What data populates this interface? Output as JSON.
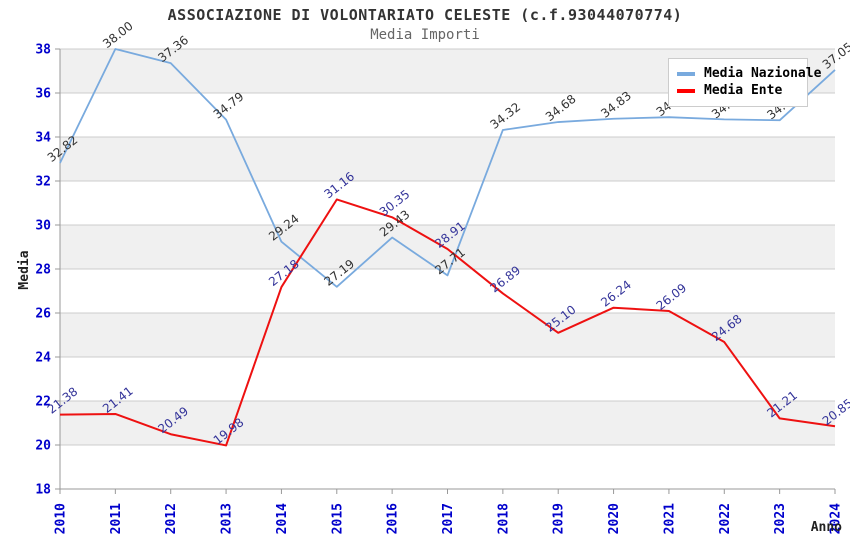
{
  "header": {
    "title": "ASSOCIAZIONE DI VOLONTARIATO CELESTE (c.f.93044070774)",
    "subtitle": "Media Importi"
  },
  "axes": {
    "y_title": "Media",
    "x_title": "Anno",
    "tick_color": "#0000cc"
  },
  "chart_data": {
    "type": "line",
    "title": "ASSOCIAZIONE DI VOLONTARIATO CELESTE (c.f.93044070774)",
    "subtitle": "Media Importi",
    "xlabel": "Anno",
    "ylabel": "Media",
    "x": [
      "2010",
      "2011",
      "2012",
      "2013",
      "2014",
      "2015",
      "2016",
      "2017",
      "2018",
      "2019",
      "2020",
      "2021",
      "2022",
      "2023",
      "2024"
    ],
    "series": [
      {
        "name": "Media Nazionale",
        "color": "#79aade",
        "label_color": "#333333",
        "values": [
          32.82,
          38.0,
          37.36,
          34.79,
          29.24,
          27.19,
          29.43,
          27.71,
          34.32,
          34.68,
          34.83,
          34.9,
          34.8,
          34.76,
          37.05
        ]
      },
      {
        "name": "Media Ente",
        "color": "#ee1111",
        "label_color": "#333399",
        "values": [
          21.38,
          21.41,
          20.49,
          19.98,
          27.18,
          31.16,
          30.35,
          28.91,
          26.89,
          25.1,
          26.24,
          26.09,
          24.68,
          21.21,
          20.85
        ]
      }
    ],
    "ylim": [
      18,
      38
    ],
    "y_tick_step": 2,
    "y_ticks": [
      18,
      20,
      22,
      24,
      26,
      28,
      30,
      32,
      34,
      36,
      38
    ],
    "grid": true,
    "band_colors": [
      "#ffffff",
      "#f0f0f0"
    ],
    "grid_color": "#cccccc",
    "axis_color": "#999999",
    "legend_position": "top-right"
  }
}
